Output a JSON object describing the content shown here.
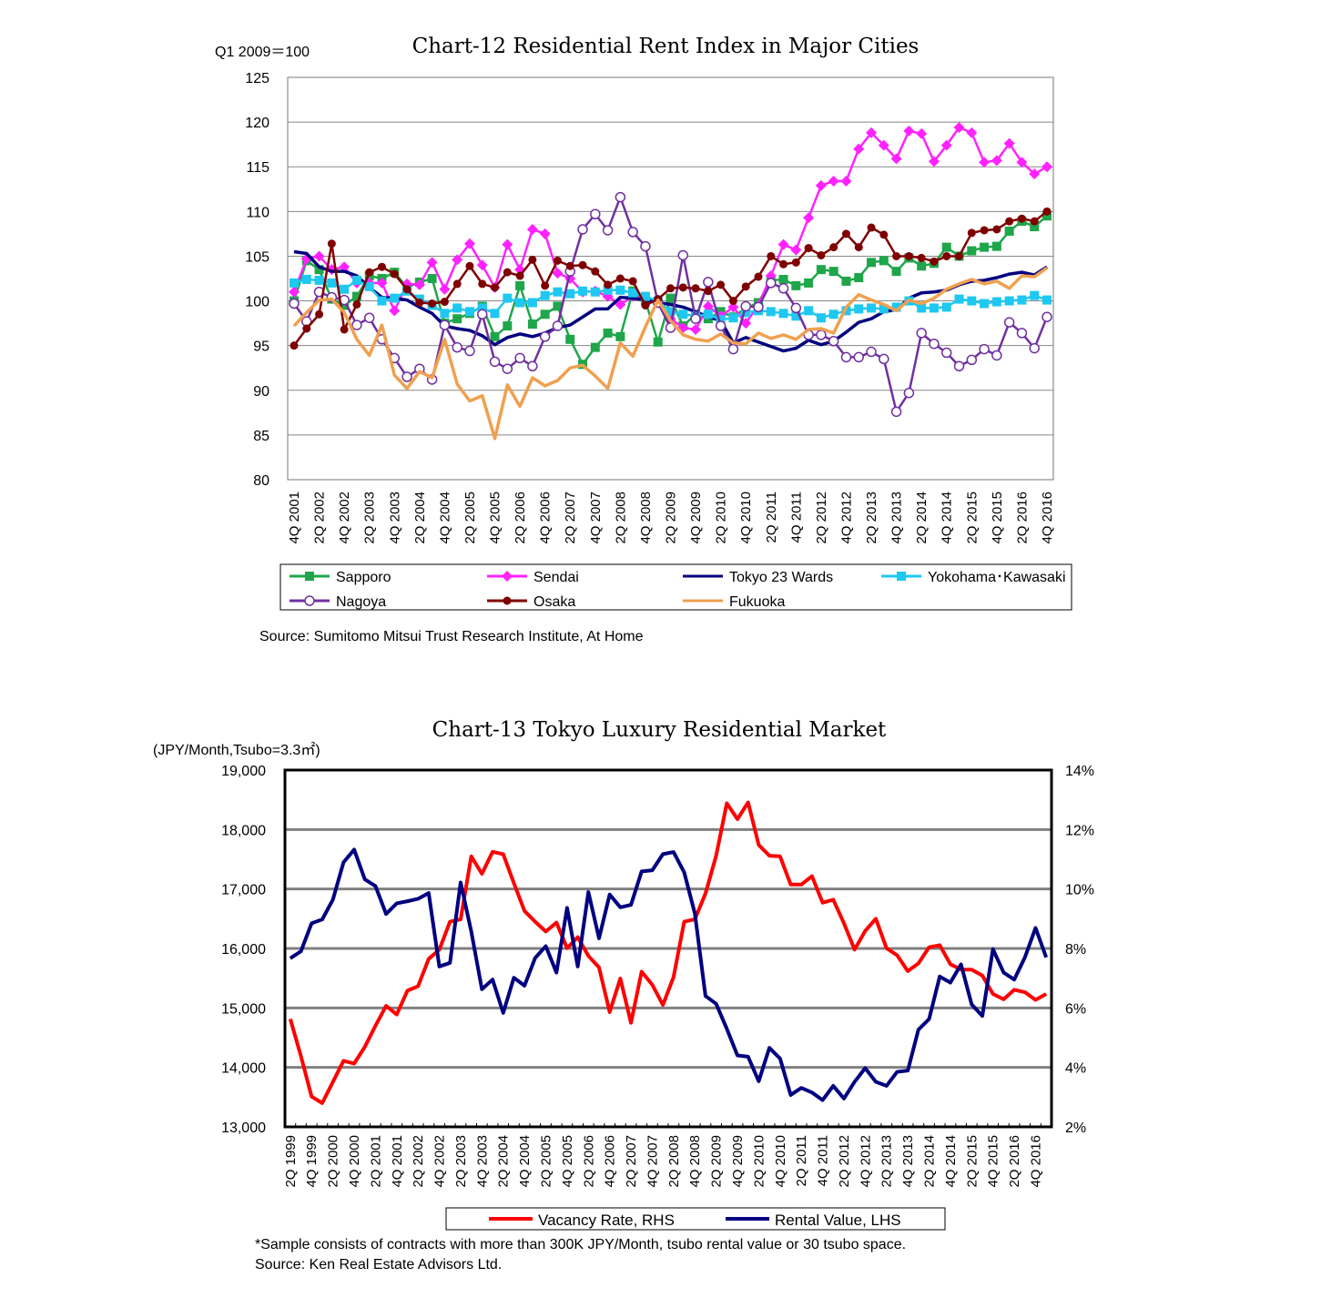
{
  "chart_data": [
    {
      "type": "line",
      "title": "Chart-12 Residential Rent Index in Major Cities",
      "ylabel": "Q1 2009＝100",
      "xlabel": "",
      "ylim": [
        80,
        125
      ],
      "y_ticks": [
        80,
        85,
        90,
        95,
        100,
        105,
        110,
        115,
        120,
        125
      ],
      "grid": true,
      "frequency": "quarterly",
      "x_tick_labels": [
        "4Q 2001",
        "2Q 2002",
        "4Q 2002",
        "2Q 2003",
        "4Q 2003",
        "2Q 2004",
        "4Q 2004",
        "2Q 2005",
        "4Q 2005",
        "2Q 2006",
        "4Q 2006",
        "2Q 2007",
        "4Q 2007",
        "2Q 2008",
        "4Q 2008",
        "2Q 2009",
        "4Q 2009",
        "2Q 2010",
        "4Q 2010",
        "2Q 2011",
        "4Q 2011",
        "2Q 2012",
        "4Q 2012",
        "2Q 2013",
        "4Q 2013",
        "2Q 2014",
        "4Q 2014",
        "2Q 2015",
        "4Q 2015",
        "2Q 2016",
        "4Q 2016"
      ],
      "legend_placement": "bottom",
      "series": [
        {
          "name": "Sapporo",
          "color": "#1fa64a",
          "marker": "square",
          "values": [
            100,
            104.5,
            103.5,
            100.2,
            99.5,
            100.5,
            102.8,
            102.5,
            103.2,
            101.5,
            102.1,
            102.5,
            97.5,
            98,
            98.6,
            99.4,
            96,
            97.2,
            101.7,
            97.4,
            98.5,
            99.4,
            95.7,
            92.9,
            94.8,
            96.4,
            96,
            101.1,
            100,
            95.4,
            100.3,
            97.2,
            98.5,
            98,
            98.8,
            98.2,
            99.2,
            99.8,
            102.3,
            102.4,
            101.7,
            102,
            103.5,
            103.3,
            102.2,
            102.6,
            104.3,
            104.5,
            103.3,
            104.8,
            103.9,
            104.2,
            106,
            105,
            105.6,
            106,
            106.1,
            107.8,
            108.9,
            108.3,
            109.5
          ]
        },
        {
          "name": "Sendai",
          "color": "#ff22ff",
          "marker": "diamond",
          "values": [
            101,
            104.7,
            105,
            103.5,
            103.8,
            102,
            102,
            102,
            98.9,
            101.9,
            101.8,
            104.3,
            101.3,
            104.6,
            106.4,
            104,
            101.5,
            106.3,
            103.5,
            108,
            107.5,
            103.1,
            102.5,
            101,
            101.1,
            100.5,
            99.6,
            100.5,
            100.2,
            100,
            98,
            97,
            96.8,
            99.4,
            98.3,
            99.3,
            97.5,
            99.5,
            102.8,
            106.3,
            105.7,
            109.3,
            112.9,
            113.4,
            113.4,
            117,
            118.8,
            117.4,
            115.9,
            119,
            118.7,
            115.6,
            117.4,
            119.4,
            118.8,
            115.5,
            115.7,
            117.6,
            115.5,
            114.2,
            115
          ]
        },
        {
          "name": "Tokyo 23 Wards",
          "color": "#000080",
          "marker": "none",
          "values": [
            105.5,
            105.3,
            103.8,
            103.3,
            103.3,
            102.8,
            101.5,
            100.4,
            100.3,
            100.1,
            99.3,
            98.6,
            97.2,
            96.9,
            96.7,
            96.1,
            95.1,
            95.9,
            96.3,
            96,
            96.4,
            97,
            97.3,
            98.2,
            99.1,
            99.1,
            100.4,
            100.3,
            100.1,
            99.8,
            99.6,
            99.3,
            98.8,
            98.2,
            97.8,
            95.3,
            95.9,
            95.4,
            94.9,
            94.4,
            94.7,
            95.6,
            95.1,
            95.5,
            96.5,
            97.6,
            98,
            98.8,
            99,
            100.3,
            100.9,
            101,
            101.2,
            101.8,
            102.2,
            102.3,
            102.6,
            103,
            103.2,
            102.9,
            103.8
          ]
        },
        {
          "name": "Yokohama･Kawasaki",
          "color": "#1ec8f0",
          "marker": "square",
          "values": [
            102,
            102.4,
            102.3,
            102,
            101.3,
            102.3,
            101.6,
            100,
            100.3,
            101.1,
            100.2,
            99.5,
            98.6,
            99.2,
            98.8,
            99.2,
            98.6,
            100.3,
            99.8,
            99.8,
            100.6,
            101,
            100.8,
            101.1,
            101,
            101.2,
            101.2,
            100.9,
            100.5,
            100,
            98.8,
            98.5,
            98.3,
            98.5,
            97.9,
            98.1,
            98.7,
            98.9,
            98.8,
            98.6,
            98.3,
            98.9,
            98.1,
            98.5,
            98.9,
            99.1,
            99.2,
            99.1,
            99.3,
            100,
            99.2,
            99.2,
            99.3,
            100.2,
            100,
            99.7,
            99.9,
            100,
            100.1,
            100.6,
            100.1
          ]
        },
        {
          "name": "Nagoya",
          "color": "#7030a0",
          "marker": "open-circle",
          "values": [
            99.7,
            97.7,
            101,
            100.4,
            100.1,
            97.3,
            98.1,
            95.7,
            93.6,
            91.5,
            92.4,
            91.2,
            97.3,
            94.8,
            94.4,
            98.5,
            93.2,
            92.4,
            93.6,
            92.7,
            96,
            97.2,
            103.3,
            108,
            109.7,
            107.9,
            111.6,
            107.7,
            106.1,
            99.8,
            97,
            105.1,
            98,
            102.1,
            97.2,
            94.6,
            99.4,
            99.3,
            102,
            101.4,
            99.2,
            96.2,
            96.2,
            95.5,
            93.7,
            93.7,
            94.3,
            93.5,
            87.6,
            89.7,
            96.4,
            95.2,
            94.2,
            92.7,
            93.4,
            94.6,
            93.9,
            97.6,
            96.4,
            94.7,
            98.2
          ]
        },
        {
          "name": "Osaka",
          "color": "#7f0000",
          "marker": "circle",
          "values": [
            95,
            96.9,
            98.5,
            106.4,
            96.8,
            99.6,
            103.2,
            103.8,
            103,
            101.3,
            99.8,
            99.7,
            99.9,
            101.9,
            103.9,
            101.9,
            101.5,
            103.2,
            102.8,
            104.6,
            101.7,
            104.5,
            103.9,
            104,
            103.3,
            101.8,
            102.5,
            102.2,
            99.5,
            100.2,
            101.4,
            101.5,
            101.4,
            101.1,
            101.8,
            100,
            101.6,
            102.7,
            105,
            104.1,
            104.3,
            105.9,
            105.1,
            106,
            107.5,
            106,
            108.2,
            107.4,
            105,
            105,
            104.8,
            104.4,
            105,
            105,
            107.6,
            107.9,
            108,
            108.9,
            109.2,
            108.9,
            110
          ]
        },
        {
          "name": "Fukuoka",
          "color": "#f0a050",
          "marker": "none",
          "values": [
            97.2,
            98.7,
            100.1,
            100.2,
            98.7,
            95.7,
            93.9,
            97.3,
            91.7,
            90.2,
            92.1,
            91.4,
            95.7,
            90.7,
            88.8,
            89.4,
            84.6,
            90.6,
            88.2,
            91.4,
            90.5,
            91.1,
            92.5,
            92.8,
            91.6,
            90.2,
            95.3,
            93.8,
            97.1,
            100.1,
            97.8,
            96.2,
            95.7,
            95.5,
            96.3,
            95.3,
            95.2,
            96.4,
            95.8,
            96.2,
            95.7,
            96.8,
            96.9,
            96.4,
            99.3,
            100.7,
            100.1,
            99.6,
            98.9,
            100.1,
            99.7,
            100.3,
            101.3,
            101.9,
            102.4,
            101.9,
            102.2,
            101.4,
            102.8,
            102.7,
            103.7
          ]
        }
      ],
      "source": "Source: Sumitomo Mitsui Trust Research Institute, At Home"
    },
    {
      "type": "line",
      "title": "Chart-13 Tokyo Luxury Residential Market",
      "ylabel": "(JPY/Month,Tsubo=3.3㎡)",
      "ylim": [
        13000,
        19000
      ],
      "y_ticks": [
        "13,000",
        "14,000",
        "15,000",
        "16,000",
        "17,000",
        "18,000",
        "19,000"
      ],
      "y2lim": [
        2,
        14
      ],
      "y2_ticks": [
        "2%",
        "4%",
        "6%",
        "8%",
        "10%",
        "12%",
        "14%"
      ],
      "grid": true,
      "frequency": "quarterly",
      "x_tick_labels": [
        "2Q 1999",
        "4Q 1999",
        "2Q 2000",
        "4Q 2000",
        "2Q 2001",
        "4Q 2001",
        "2Q 2002",
        "4Q 2002",
        "2Q 2003",
        "4Q 2003",
        "2Q 2004",
        "4Q 2004",
        "2Q 2005",
        "4Q 2005",
        "2Q 2006",
        "4Q 2006",
        "2Q 2007",
        "4Q 2007",
        "2Q 2008",
        "4Q 2008",
        "2Q 2009",
        "4Q 2009",
        "2Q 2010",
        "4Q 2010",
        "2Q 2011",
        "4Q 2011",
        "2Q 2012",
        "4Q 2012",
        "2Q 2013",
        "4Q 2013",
        "2Q 2014",
        "4Q 2014",
        "2Q 2015",
        "4Q 2015",
        "2Q 2016",
        "4Q 2016"
      ],
      "legend_placement": "bottom",
      "series": [
        {
          "name": "Vacancy Rate, RHS",
          "axis": "right",
          "unit": "%",
          "color": "#ff0000",
          "values": [
            5.63,
            4.38,
            3.02,
            2.8,
            3.51,
            4.22,
            4.13,
            4.69,
            5.4,
            6.07,
            5.78,
            6.58,
            6.73,
            7.65,
            7.96,
            8.9,
            8.98,
            11.1,
            10.51,
            11.25,
            11.17,
            10.2,
            9.26,
            8.9,
            8.57,
            8.87,
            8.01,
            8.38,
            7.75,
            7.36,
            5.86,
            6.99,
            5.5,
            7.22,
            6.78,
            6.1,
            7.04,
            8.9,
            8.98,
            9.85,
            11.12,
            12.88,
            12.35,
            12.91,
            11.48,
            11.12,
            11.1,
            10.15,
            10.15,
            10.43,
            9.54,
            9.64,
            8.85,
            7.96,
            8.59,
            9.0,
            8.01,
            7.77,
            7.24,
            7.5,
            8.04,
            8.11,
            7.47,
            7.29,
            7.29,
            7.09,
            6.47,
            6.29,
            6.61,
            6.53,
            6.27,
            6.47
          ]
        },
        {
          "name": "Rental Value, LHS",
          "axis": "left",
          "unit": "JPY",
          "color": "#000080",
          "values": [
            15834,
            15952,
            16422,
            16488,
            16820,
            17448,
            17662,
            17162,
            17049,
            16580,
            16759,
            16794,
            16835,
            16932,
            15697,
            15758,
            17110,
            16284,
            15314,
            15477,
            14916,
            15508,
            15375,
            15840,
            16039,
            15595,
            16682,
            15697,
            16948,
            16171,
            16907,
            16692,
            16733,
            17295,
            17315,
            17586,
            17621,
            17279,
            16590,
            15201,
            15069,
            14650,
            14201,
            14180,
            13767,
            14329,
            14150,
            13537,
            13655,
            13578,
            13450,
            13690,
            13476,
            13757,
            13987,
            13757,
            13690,
            13925,
            13946,
            14635,
            14813,
            15528,
            15426,
            15732,
            15059,
            14865,
            15988,
            15595,
            15477,
            15850,
            16345,
            15850
          ]
        }
      ],
      "footnote": "*Sample consists of contracts with more than 300K JPY/Month, tsubo rental value or 30 tsubo space.",
      "source": "Source: Ken Real Estate Advisors Ltd."
    }
  ]
}
